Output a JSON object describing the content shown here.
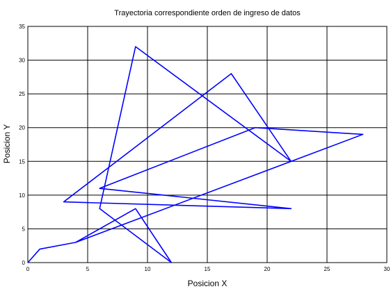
{
  "chart_data": {
    "type": "line",
    "title": "Trayectoria correspondiente orden de ingreso de datos",
    "xlabel": "Posicion X",
    "ylabel": "Posicion  Y",
    "xlim": [
      0,
      30
    ],
    "ylim": [
      0,
      35
    ],
    "grid": true,
    "x_ticks": [
      "0",
      "5",
      "10",
      "15",
      "20",
      "25",
      "30"
    ],
    "y_ticks": [
      "0",
      "5",
      "10",
      "15",
      "20",
      "25",
      "30",
      "35"
    ],
    "line_color": "#0000ff",
    "series": [
      {
        "x": [
          0,
          1,
          4,
          9,
          12,
          6,
          9,
          22,
          17,
          3,
          22,
          6,
          19,
          28,
          4
        ],
        "y": [
          0,
          2,
          3,
          8,
          0,
          8,
          32,
          15,
          28,
          9,
          8,
          11,
          20,
          19,
          3
        ]
      }
    ]
  }
}
